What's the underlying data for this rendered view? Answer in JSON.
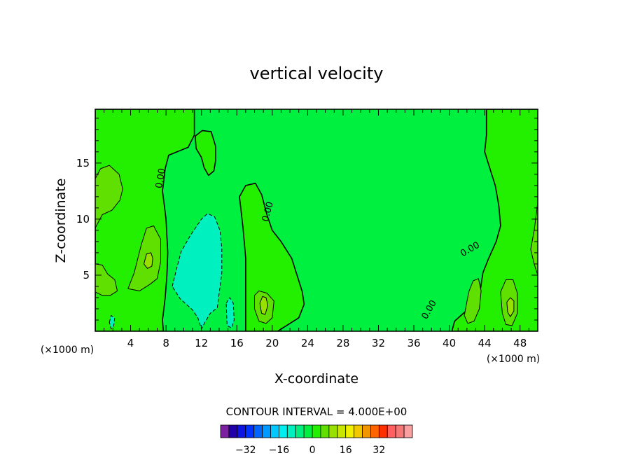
{
  "chart_data": {
    "type": "heatmap",
    "title": "vertical velocity",
    "xlabel": "X-coordinate",
    "ylabel": "Z-coordinate",
    "x_unit": "(×1000 m)",
    "x_unit_right": "(×1000 m)",
    "xlim": [
      0,
      50
    ],
    "ylim": [
      0,
      19.8
    ],
    "x_ticks": [
      4,
      8,
      12,
      16,
      20,
      24,
      28,
      32,
      36,
      40,
      44,
      48
    ],
    "y_ticks": [
      5,
      10,
      15
    ],
    "contour_interval_text": "CONTOUR INTERVAL = 4.000E+00",
    "contour_labels": [
      {
        "x": 7.7,
        "y": 13.6,
        "text": "0.00",
        "angle": -80
      },
      {
        "x": 19.8,
        "y": 10.6,
        "text": "0.00",
        "angle": -75
      },
      {
        "x": 42.5,
        "y": 7.1,
        "text": "0.00",
        "angle": -30
      },
      {
        "x": 38.0,
        "y": 1.8,
        "text": "0.00",
        "angle": -60
      }
    ],
    "field_regions": [
      {
        "level": 4,
        "poly": [
          [
            0,
            19.8
          ],
          [
            11.2,
            19.8
          ],
          [
            11.2,
            17.5
          ],
          [
            10.5,
            16.4
          ],
          [
            8.3,
            15.7
          ],
          [
            7.9,
            14.5
          ],
          [
            7.6,
            12.5
          ],
          [
            8.0,
            10
          ],
          [
            8.2,
            7
          ],
          [
            8.1,
            5
          ],
          [
            7.9,
            3
          ],
          [
            7.6,
            1
          ],
          [
            7.7,
            0
          ],
          [
            0,
            0
          ]
        ]
      },
      {
        "level": 4,
        "poly": [
          [
            16.3,
            12.0
          ],
          [
            17.0,
            13.0
          ],
          [
            18.1,
            13.2
          ],
          [
            18.8,
            12.2
          ],
          [
            19.4,
            10.4
          ],
          [
            20.0,
            9
          ],
          [
            21,
            8
          ],
          [
            22.2,
            6.5
          ],
          [
            22.8,
            5
          ],
          [
            23.4,
            3.5
          ],
          [
            23.6,
            2.4
          ],
          [
            23.0,
            1.2
          ],
          [
            21.8,
            0.6
          ],
          [
            20.6,
            0
          ],
          [
            17.0,
            0
          ],
          [
            17.0,
            6.5
          ],
          [
            16.7,
            9.2
          ]
        ]
      },
      {
        "level": 4,
        "poly": [
          [
            50,
            19.8
          ],
          [
            44.2,
            19.8
          ],
          [
            44.2,
            17.5
          ],
          [
            44.0,
            16
          ],
          [
            44.6,
            14.5
          ],
          [
            45.2,
            13
          ],
          [
            45.6,
            11.2
          ],
          [
            45.8,
            9.4
          ],
          [
            45.3,
            8
          ],
          [
            44.4,
            6.4
          ],
          [
            43.8,
            5.2
          ],
          [
            43.5,
            3.6
          ],
          [
            42.8,
            2.4
          ],
          [
            41.6,
            1.6
          ],
          [
            40.6,
            0.9
          ],
          [
            40.3,
            0
          ],
          [
            50,
            0
          ]
        ]
      },
      {
        "level": 4,
        "poly": [
          [
            11.3,
            17.4
          ],
          [
            12.1,
            17.9
          ],
          [
            13.1,
            17.8
          ],
          [
            13.6,
            16.5
          ],
          [
            13.6,
            15.2
          ],
          [
            13.4,
            14.3
          ],
          [
            12.8,
            13.9
          ],
          [
            12.3,
            14.6
          ],
          [
            12.0,
            15.5
          ],
          [
            11.4,
            16.3
          ]
        ]
      },
      {
        "level": 8,
        "poly": [
          [
            0,
            13.6
          ],
          [
            0.6,
            14.5
          ],
          [
            1.6,
            14.8
          ],
          [
            2.7,
            14.0
          ],
          [
            3.1,
            12.7
          ],
          [
            2.8,
            11.7
          ],
          [
            1.9,
            10.8
          ],
          [
            0.8,
            10.4
          ],
          [
            0,
            9.2
          ]
        ]
      },
      {
        "level": 8,
        "poly": [
          [
            0,
            6.0
          ],
          [
            0.8,
            5.9
          ],
          [
            1.4,
            5.1
          ],
          [
            2.2,
            4.6
          ],
          [
            2.5,
            3.6
          ],
          [
            1.7,
            3.2
          ],
          [
            0.8,
            3.2
          ],
          [
            0,
            3.5
          ]
        ]
      },
      {
        "level": 8,
        "poly": [
          [
            3.7,
            3.8
          ],
          [
            4.4,
            5.2
          ],
          [
            5.2,
            7.7
          ],
          [
            5.8,
            9.2
          ],
          [
            6.6,
            9.4
          ],
          [
            7.4,
            8.2
          ],
          [
            7.4,
            6.2
          ],
          [
            7.0,
            4.7
          ],
          [
            6.2,
            4.2
          ],
          [
            5.0,
            3.6
          ]
        ]
      },
      {
        "level": 8,
        "poly": [
          [
            49.2,
            7.3
          ],
          [
            49.6,
            9
          ],
          [
            50,
            11.5
          ],
          [
            50,
            5.0
          ],
          [
            49.6,
            6
          ]
        ]
      },
      {
        "level": 8,
        "poly": [
          [
            45.8,
            3.5
          ],
          [
            46.4,
            4.6
          ],
          [
            47.2,
            4.6
          ],
          [
            47.7,
            3.4
          ],
          [
            47.7,
            1.6
          ],
          [
            47.1,
            0.5
          ],
          [
            46.4,
            0.6
          ],
          [
            46.0,
            1.6
          ]
        ]
      },
      {
        "level": 8,
        "poly": [
          [
            41.7,
            1.4
          ],
          [
            42.2,
            3.5
          ],
          [
            42.7,
            4.5
          ],
          [
            43.3,
            4.7
          ],
          [
            43.6,
            3.6
          ],
          [
            43.4,
            2
          ],
          [
            42.8,
            0.9
          ],
          [
            42.1,
            0.7
          ]
        ]
      },
      {
        "level": 8,
        "poly": [
          [
            18.0,
            3.2
          ],
          [
            18.5,
            3.6
          ],
          [
            19.4,
            3.4
          ],
          [
            20.2,
            2.7
          ],
          [
            20.0,
            1.2
          ],
          [
            19.3,
            0.7
          ],
          [
            18.5,
            0.9
          ],
          [
            18.0,
            2.0
          ]
        ]
      },
      {
        "level": 12,
        "poly": [
          [
            5.5,
            6.0
          ],
          [
            5.8,
            6.9
          ],
          [
            6.3,
            7.0
          ],
          [
            6.5,
            6.5
          ],
          [
            6.4,
            5.8
          ],
          [
            5.9,
            5.6
          ]
        ]
      },
      {
        "level": 12,
        "poly": [
          [
            18.6,
            2.5
          ],
          [
            18.9,
            3.1
          ],
          [
            19.3,
            3.0
          ],
          [
            19.5,
            2.3
          ],
          [
            19.2,
            1.5
          ],
          [
            18.8,
            1.6
          ]
        ]
      },
      {
        "level": 12,
        "poly": [
          [
            46.5,
            2.6
          ],
          [
            46.9,
            3.0
          ],
          [
            47.3,
            2.7
          ],
          [
            47.3,
            1.8
          ],
          [
            46.9,
            1.3
          ],
          [
            46.6,
            1.7
          ]
        ]
      },
      {
        "level": -4,
        "poly": [
          [
            8.7,
            4.0
          ],
          [
            9.2,
            5.6
          ],
          [
            9.7,
            7.1
          ],
          [
            10.8,
            8.6
          ],
          [
            12.0,
            10.0
          ],
          [
            12.7,
            10.5
          ],
          [
            13.5,
            10.2
          ],
          [
            14.1,
            9.0
          ],
          [
            14.3,
            7.4
          ],
          [
            14.3,
            5.2
          ],
          [
            14.0,
            3.4
          ],
          [
            13.8,
            2.1
          ],
          [
            13.0,
            1.6
          ],
          [
            12.4,
            0.8
          ],
          [
            12.0,
            0.2
          ],
          [
            11.6,
            1.2
          ],
          [
            11.0,
            1.9
          ],
          [
            10.3,
            2.4
          ],
          [
            9.6,
            2.9
          ]
        ]
      },
      {
        "level": -4,
        "poly": [
          [
            14.8,
            2.5
          ],
          [
            15.2,
            3.0
          ],
          [
            15.6,
            2.5
          ],
          [
            15.7,
            1.0
          ],
          [
            15.4,
            0.3
          ],
          [
            14.9,
            0.5
          ]
        ]
      },
      {
        "level": -4,
        "poly": [
          [
            1.6,
            0.8
          ],
          [
            1.8,
            1.4
          ],
          [
            2.2,
            1.2
          ],
          [
            2.1,
            0.5
          ],
          [
            1.8,
            0.2
          ]
        ]
      }
    ],
    "colorbar": {
      "tick_labels": [
        "−32",
        "−16",
        "0",
        "16",
        "32"
      ],
      "tick_values": [
        -32,
        -16,
        0,
        16,
        32
      ],
      "colors": [
        "#7c1fa0",
        "#2200a8",
        "#0e15e0",
        "#0033ff",
        "#0066ff",
        "#0099ff",
        "#00c8ff",
        "#00eef0",
        "#00f0c0",
        "#00f080",
        "#00f040",
        "#22f000",
        "#60e000",
        "#98e000",
        "#c8e600",
        "#f0f000",
        "#f0c800",
        "#f09600",
        "#ff6400",
        "#ff3000",
        "#ff6060",
        "#f47878",
        "#f8a0a0"
      ]
    },
    "level_colors": {
      "-4": "#00f0c0",
      "0": "#00f040",
      "4": "#22f000",
      "8": "#60e000",
      "12": "#98e000"
    }
  }
}
